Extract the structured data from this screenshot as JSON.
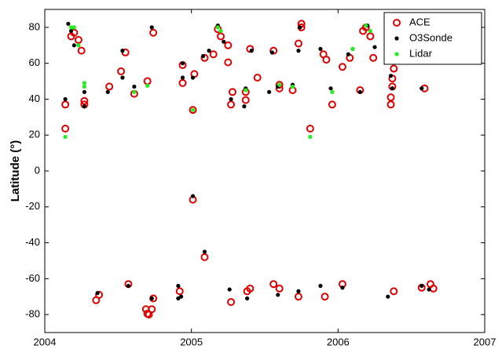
{
  "chart_data": {
    "type": "scatter",
    "ylabel": "Latitude (°)",
    "xlim": [
      2004,
      2007
    ],
    "ylim": [
      -90,
      90
    ],
    "xticks": [
      2004,
      2005,
      2006,
      2007
    ],
    "yticks": [
      -80,
      -60,
      -40,
      -20,
      0,
      20,
      40,
      60,
      80
    ],
    "legend": "upper right",
    "series": [
      {
        "name": "ACE",
        "color": "#e00000",
        "marker": "open-circle",
        "x": [
          2004.14,
          2004.14,
          2004.18,
          2004.2,
          2004.23,
          2004.25,
          2004.27,
          2004.27,
          2004.35,
          2004.37,
          2004.44,
          2004.52,
          2004.55,
          2004.57,
          2004.61,
          2004.69,
          2004.7,
          2004.71,
          2004.73,
          2004.74,
          2004.7,
          2004.74,
          2004.92,
          2004.94,
          2004.94,
          2005.01,
          2005.01,
          2005.02,
          2005.09,
          2005.09,
          2005.15,
          2005.18,
          2005.2,
          2005.25,
          2005.25,
          2005.27,
          2005.28,
          2005.27,
          2005.37,
          2005.37,
          2005.4,
          2005.38,
          2005.4,
          2005.45,
          2005.56,
          2005.56,
          2005.6,
          2005.6,
          2005.6,
          2005.69,
          2005.73,
          2005.73,
          2005.75,
          2005.75,
          2005.81,
          2005.9,
          2005.92,
          2005.91,
          2005.96,
          2006.03,
          2006.03,
          2006.08,
          2006.15,
          2006.17,
          2006.19,
          2006.22,
          2006.24,
          2006.36,
          2006.36,
          2006.37,
          2006.37,
          2006.38,
          2006.38,
          2006.59,
          2006.57,
          2006.63,
          2006.65
        ],
        "values": [
          23.6,
          37,
          75,
          77,
          73,
          67,
          39,
          37,
          -72,
          -69,
          47,
          55.5,
          66,
          -63,
          43,
          -77,
          -79.5,
          -80,
          -77,
          -71,
          50,
          77,
          -67,
          59,
          49,
          34,
          -16,
          54,
          -48,
          63,
          65,
          79,
          75,
          70,
          60.5,
          37,
          44,
          -73,
          39.5,
          44,
          68,
          -67,
          -65.5,
          52,
          67,
          -63,
          48,
          -65.5,
          46,
          45,
          -70,
          71,
          82,
          80,
          23.6,
          65,
          62,
          -70,
          37,
          58,
          -63,
          63,
          45,
          78,
          80,
          75,
          63,
          37,
          41,
          47,
          51.5,
          57,
          -67,
          46,
          -65,
          -63,
          -65.5
        ]
      },
      {
        "name": "O3Sonde",
        "color": "#000000",
        "marker": "dot",
        "x": [
          2004.14,
          2004.16,
          2004.18,
          2004.2,
          2004.27,
          2004.27,
          2004.36,
          2004.43,
          2004.53,
          2004.53,
          2004.57,
          2004.61,
          2004.73,
          2004.73,
          2004.91,
          2004.91,
          2004.93,
          2004.94,
          2004.94,
          2005.01,
          2005.01,
          2005.09,
          2005.08,
          2005.12,
          2005.18,
          2005.22,
          2005.27,
          2005.26,
          2005.36,
          2005.37,
          2005.38,
          2005.41,
          2005.55,
          2005.53,
          2005.59,
          2005.59,
          2005.69,
          2005.73,
          2005.73,
          2005.74,
          2005.88,
          2005.88,
          2005.95,
          2006.03,
          2006.07,
          2006.1,
          2006.15,
          2006.2,
          2006.25,
          2006.34,
          2006.37,
          2006.36,
          2006.57,
          2006.62,
          2006.57
        ],
        "values": [
          40,
          82,
          78,
          70,
          36,
          44,
          -68,
          44,
          67,
          52,
          -64,
          47,
          80,
          -71,
          -64,
          -71,
          -70,
          52,
          60,
          -14,
          52,
          -45,
          64,
          67,
          81,
          72,
          40,
          -66,
          36,
          46,
          -71,
          67,
          66,
          44,
          -69,
          47,
          48,
          -67,
          67,
          80,
          -64,
          68,
          46,
          -65,
          65,
          68,
          44,
          81,
          69,
          -70,
          46,
          53,
          -64,
          -66,
          46
        ]
      },
      {
        "name": "Lidar",
        "color": "#22ee22",
        "marker": "dot",
        "x": [
          2004.14,
          2004.18,
          2004.2,
          2004.23,
          2004.27,
          2004.27,
          2004.61,
          2004.7,
          2005.01,
          2005.18,
          2005.2,
          2005.37,
          2005.6,
          2005.69,
          2005.81,
          2005.96,
          2006.1,
          2006.19,
          2006.22
        ],
        "values": [
          19,
          80,
          80,
          70,
          49,
          47,
          44,
          47.5,
          34,
          80,
          78,
          45,
          48,
          47,
          19,
          44,
          68,
          81,
          78
        ]
      }
    ]
  }
}
